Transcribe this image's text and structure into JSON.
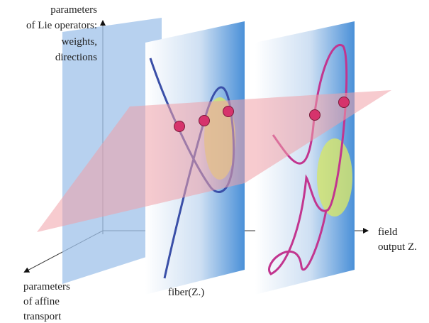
{
  "labels": {
    "lie_operators": [
      "parameters",
      "of Lie operators:",
      "weights,",
      "directions"
    ],
    "field_output": [
      "field",
      "output Z."
    ],
    "affine_transport": [
      "parameters",
      "of affine",
      "transport"
    ],
    "fiber": "fiber(Z.)"
  }
}
